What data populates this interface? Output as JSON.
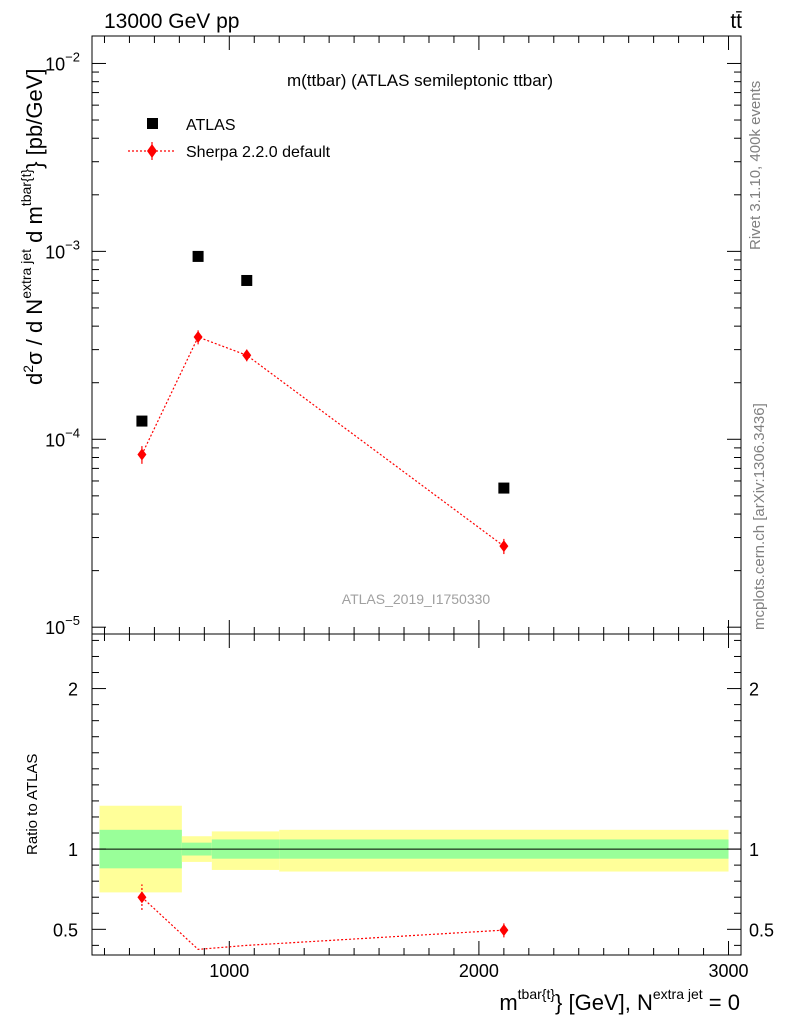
{
  "header": {
    "energy_label": "13000 GeV pp",
    "process_label": "tt̄"
  },
  "side_labels": {
    "rivet": "Rivet 3.1.10,  400k events",
    "mcplots": "mcplots.cern.ch [arXiv:1306.3436]"
  },
  "chart_data": [
    {
      "type": "scatter",
      "panel": "main",
      "title": "m(ttbar) (ATLAS semileptonic ttbar)",
      "watermark": "ATLAS_2019_I1750330",
      "ylabel": "d²σ / d N^{extra jet} d m^{tbar{t}} [pb/GeV]",
      "ylabel_parts": {
        "a": "d",
        "b": "2",
        "c": "σ  /  d N",
        "d": "extra jet",
        "e": " d m",
        "f": "tbar{t}",
        "g": "} [pb/GeV]"
      },
      "yscale": "log",
      "xlim": [
        450,
        3050
      ],
      "ylim": [
        9.2e-06,
        0.014
      ],
      "y_ticks": [
        {
          "value": 1e-05,
          "label_base": "10",
          "label_exp": "−5"
        },
        {
          "value": 0.0001,
          "label_base": "10",
          "label_exp": "−4"
        },
        {
          "value": 0.001,
          "label_base": "10",
          "label_exp": "−3"
        },
        {
          "value": 0.01,
          "label_base": "10",
          "label_exp": "−2"
        }
      ],
      "legend_position": "top-left",
      "series": [
        {
          "name": "ATLAS",
          "style": "black-square",
          "color": "#000000",
          "points": [
            {
              "x": 650,
              "y": 0.000125
            },
            {
              "x": 875,
              "y": 0.00094
            },
            {
              "x": 1070,
              "y": 0.0007
            },
            {
              "x": 2100,
              "y": 5.5e-05
            }
          ]
        },
        {
          "name": "Sherpa 2.2.0 default",
          "style": "red-diamond-dotted",
          "color": "#ff0000",
          "points": [
            {
              "x": 650,
              "y": 8.3e-05,
              "ylo": 7.4e-05,
              "yhi": 9.2e-05
            },
            {
              "x": 875,
              "y": 0.00035,
              "ylo": 0.00032,
              "yhi": 0.00038
            },
            {
              "x": 1070,
              "y": 0.00028,
              "ylo": 0.00026,
              "yhi": 0.0003
            },
            {
              "x": 2100,
              "y": 2.7e-05,
              "ylo": 2.45e-05,
              "yhi": 2.95e-05
            }
          ]
        }
      ]
    },
    {
      "type": "scatter",
      "panel": "ratio",
      "ylabel": "Ratio to ATLAS",
      "xlabel_parts": {
        "a": "m",
        "b": "tbar{t}",
        "c": "} [GeV], N",
        "d": "extra jet",
        "e": " = 0"
      },
      "xlim": [
        450,
        3050
      ],
      "ylim": [
        0.34,
        2.34
      ],
      "x_ticks": [
        1000,
        2000,
        3000
      ],
      "y_ticks": [
        {
          "value": 0.5,
          "label": "0.5"
        },
        {
          "value": 1,
          "label": "1"
        },
        {
          "value": 2,
          "label": "2"
        }
      ],
      "bands": [
        {
          "x0": 480,
          "x1": 810,
          "green": [
            0.88,
            1.12
          ],
          "yellow": [
            0.73,
            1.27
          ]
        },
        {
          "x0": 810,
          "x1": 930,
          "green": [
            0.96,
            1.04
          ],
          "yellow": [
            0.92,
            1.08
          ]
        },
        {
          "x0": 930,
          "x1": 1200,
          "green": [
            0.94,
            1.06
          ],
          "yellow": [
            0.87,
            1.11
          ]
        },
        {
          "x0": 1200,
          "x1": 3000,
          "green": [
            0.94,
            1.06
          ],
          "yellow": [
            0.86,
            1.12
          ]
        }
      ],
      "series": [
        {
          "name": "Sherpa 2.2.0 default",
          "color": "#ff0000",
          "points": [
            {
              "x": 650,
              "y": 0.7,
              "ylo": 0.62,
              "yhi": 0.78
            },
            {
              "x": 875,
              "y": 0.375
            },
            {
              "x": 1070,
              "y": 0.4
            },
            {
              "x": 2100,
              "y": 0.495,
              "ylo": 0.45,
              "yhi": 0.545
            }
          ]
        }
      ]
    }
  ]
}
